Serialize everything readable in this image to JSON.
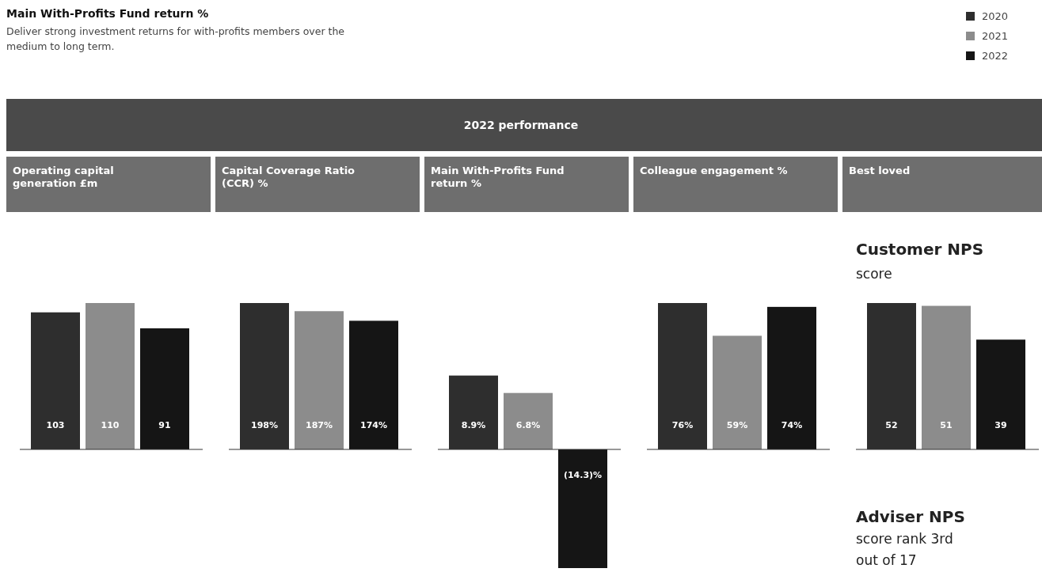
{
  "chart_data": [
    {
      "type": "other",
      "title": "Main With-Profits Fund return %",
      "subtitle": "Deliver strong investment returns for with-profits members over the medium to long term.",
      "annotations": [
        "2022 performance"
      ]
    },
    {
      "type": "bar",
      "title": "Operating capital generation £m",
      "categories": [
        null
      ],
      "legend": "top right",
      "series": [
        {
          "name": "2020",
          "color": "#2e2e2e",
          "values": [
            103
          ],
          "value_labels": [
            "103"
          ]
        },
        {
          "name": "2021",
          "color": "#8c8c8c",
          "values": [
            110
          ],
          "value_labels": [
            "110"
          ]
        },
        {
          "name": "2022",
          "color": "#151515",
          "values": [
            91
          ],
          "value_labels": [
            "91"
          ]
        }
      ]
    },
    {
      "type": "bar",
      "title": "Capital Coverage Ratio (CCR) %",
      "categories": [
        null
      ],
      "series": [
        {
          "color": "#2e2e2e",
          "values": [
            198
          ],
          "value_labels": [
            "198%"
          ]
        },
        {
          "color": "#8c8c8c",
          "values": [
            187
          ],
          "value_labels": [
            "187%"
          ]
        },
        {
          "color": "#151515",
          "values": [
            174
          ],
          "value_labels": [
            "174%"
          ]
        }
      ]
    },
    {
      "type": "bar",
      "title": "Main With-Profits Fund return %",
      "categories": [
        null
      ],
      "series": [
        {
          "color": "#2e2e2e",
          "values": [
            8.9
          ],
          "value_labels": [
            "8.9%"
          ]
        },
        {
          "color": "#8c8c8c",
          "values": [
            6.8
          ],
          "value_labels": [
            "6.8%"
          ]
        },
        {
          "color": "#151515",
          "values": [
            -14.3
          ],
          "value_labels": [
            "(14.3)%"
          ]
        }
      ]
    },
    {
      "type": "bar",
      "title": "Colleague engagement %",
      "categories": [
        null
      ],
      "series": [
        {
          "color": "#2e2e2e",
          "values": [
            76
          ],
          "value_labels": [
            "76%"
          ]
        },
        {
          "color": "#8c8c8c",
          "values": [
            59
          ],
          "value_labels": [
            "59%"
          ]
        },
        {
          "color": "#151515",
          "values": [
            74
          ],
          "value_labels": [
            "74%"
          ]
        }
      ]
    },
    {
      "type": "bar",
      "title": "Best loved",
      "subtitle": "Customer NPS score",
      "categories": [
        null
      ],
      "annotations": [
        "Adviser NPS",
        "score rank 3rd",
        "out of 17"
      ],
      "series": [
        {
          "color": "#2e2e2e",
          "values": [
            52
          ],
          "value_labels": [
            "52"
          ]
        },
        {
          "color": "#8c8c8c",
          "values": [
            51
          ],
          "value_labels": [
            "51"
          ]
        },
        {
          "color": "#151515",
          "values": [
            39
          ],
          "value_labels": [
            "39"
          ]
        }
      ]
    }
  ]
}
